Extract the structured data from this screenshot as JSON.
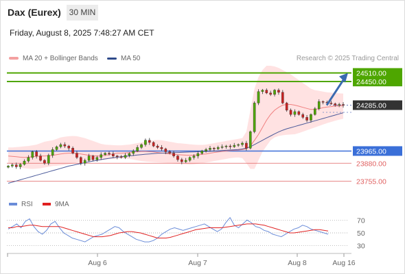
{
  "header": {
    "instrument": "Dax (Eurex)",
    "interval": "30 MIN",
    "timestamp": "Friday, August 8, 2025 7:48:27 AM CET"
  },
  "legend": {
    "ma20_label": "MA 20 + Bollinger Bands",
    "ma50_label": "MA 50",
    "credit": "Research © 2025 Trading Central"
  },
  "rsi_legend": {
    "rsi_label": "RSI",
    "ma_label": "9MA"
  },
  "colors": {
    "resistance": "#4ea600",
    "support": "#3a6fd8",
    "red_level": "#e06060",
    "current": "#333333",
    "candle_up": "#4ea600",
    "candle_down": "#cc2222",
    "bollinger_fill": "#ffd8d8",
    "ma20": "#f08080",
    "ma50": "#4a5a9a",
    "arrow": "#3a6ab0",
    "rsi": "#6a8cd8",
    "rsi_ma": "#e02020"
  },
  "chart_data": [
    {
      "type": "candlestick",
      "instrument": "Dax (Eurex)",
      "timeframe": "30 MIN",
      "ylim": [
        23690,
        24560
      ],
      "x_ticks": [
        "Aug 6",
        "Aug 7",
        "Aug 8",
        "Aug 16"
      ],
      "levels": [
        {
          "value": 24510.0,
          "label": "24510.00",
          "kind": "resistance"
        },
        {
          "value": 24450.0,
          "label": "24450.00",
          "kind": "resistance"
        },
        {
          "value": 24285.0,
          "label": "24285.00",
          "kind": "current"
        },
        {
          "value": 23965.0,
          "label": "23965.00",
          "kind": "support"
        },
        {
          "value": 23880.0,
          "label": "23880.00",
          "kind": "support_minor"
        },
        {
          "value": 23755.0,
          "label": "23755.00",
          "kind": "support_minor"
        }
      ],
      "closes": [
        23860,
        23868,
        23855,
        23872,
        23895,
        23920,
        23960,
        23930,
        23900,
        23880,
        23935,
        23975,
        23995,
        24010,
        24000,
        23985,
        23950,
        23920,
        23880,
        23900,
        23930,
        23905,
        23920,
        23940,
        23950,
        23945,
        23930,
        23925,
        23920,
        23935,
        23948,
        23965,
        23990,
        24010,
        24040,
        24025,
        24000,
        23990,
        23980,
        23960,
        23950,
        23930,
        23905,
        23890,
        23900,
        23920,
        23930,
        23948,
        23965,
        23975,
        23985,
        23980,
        23990,
        23995,
        24000,
        23995,
        24005,
        24010,
        24020,
        23985,
        24100,
        24300,
        24380,
        24390,
        24370,
        24360,
        24390,
        24375,
        24300,
        24250,
        24220,
        24240,
        24220,
        24200,
        24180,
        24220,
        24260,
        24310,
        24305,
        24300,
        24295,
        24285,
        24290,
        24285
      ],
      "ma20": [
        23930,
        23928,
        23925,
        23922,
        23920,
        23922,
        23925,
        23928,
        23930,
        23930,
        23932,
        23935,
        23940,
        23945,
        23948,
        23950,
        23950,
        23948,
        23945,
        23940,
        23935,
        23932,
        23930,
        23930,
        23935,
        23940,
        23945,
        23950,
        23950,
        23952,
        23955,
        23958,
        23960,
        23962,
        23962,
        23960,
        23958,
        23955,
        23952,
        23948,
        23945,
        23942,
        23940,
        23938,
        23936,
        23935,
        23936,
        23938,
        23942,
        23945,
        23950,
        23955,
        23958,
        23962,
        23965,
        23968,
        23970,
        23972,
        23975,
        23980,
        24000,
        24040,
        24080,
        24130,
        24180,
        24220,
        24250,
        24270,
        24285,
        24290,
        24290,
        24285,
        24278,
        24270,
        24262,
        24255,
        24255,
        24260,
        24268,
        24272,
        24275,
        24278,
        24280,
        24282
      ],
      "ma50": [
        23740,
        23748,
        23756,
        23764,
        23772,
        23780,
        23788,
        23796,
        23804,
        23812,
        23820,
        23828,
        23836,
        23844,
        23852,
        23860,
        23866,
        23872,
        23878,
        23884,
        23890,
        23895,
        23900,
        23905,
        23910,
        23914,
        23918,
        23922,
        23925,
        23928,
        23931,
        23934,
        23937,
        23940,
        23943,
        23945,
        23947,
        23949,
        23950,
        23952,
        23953,
        23954,
        23955,
        23956,
        23957,
        23958,
        23959,
        23960,
        23961,
        23962,
        23963,
        23965,
        23966,
        23968,
        23970,
        23972,
        23974,
        23976,
        23979,
        23985,
        23995,
        24010,
        24025,
        24040,
        24055,
        24070,
        24085,
        24098,
        24110,
        24120,
        24128,
        24136,
        24144,
        24152,
        24160,
        24168,
        24176,
        24184,
        24192,
        24200,
        24208,
        24216,
        24224,
        24232
      ],
      "bb_upper": [
        23990,
        23990,
        23992,
        23995,
        23998,
        24000,
        24005,
        24010,
        24020,
        24030,
        24035,
        24040,
        24050,
        24060,
        24065,
        24068,
        24070,
        24068,
        24062,
        24055,
        24045,
        24035,
        24025,
        24015,
        24010,
        24008,
        24006,
        24005,
        24005,
        24008,
        24010,
        24015,
        24020,
        24025,
        24030,
        24035,
        24040,
        24042,
        24040,
        24035,
        24030,
        24025,
        24020,
        24018,
        24015,
        24012,
        24010,
        24008,
        24008,
        24010,
        24015,
        24020,
        24025,
        24030,
        24035,
        24040,
        24045,
        24050,
        24055,
        24100,
        24250,
        24400,
        24480,
        24530,
        24560,
        24560,
        24555,
        24545,
        24530,
        24515,
        24500,
        24480,
        24460,
        24440,
        24420,
        24400,
        24390,
        24385,
        24380,
        24375,
        24372,
        24370,
        24368,
        24366
      ],
      "bb_lower": [
        23880,
        23870,
        23860,
        23850,
        23845,
        23842,
        23840,
        23842,
        23845,
        23850,
        23855,
        23860,
        23862,
        23865,
        23868,
        23872,
        23878,
        23885,
        23890,
        23892,
        23895,
        23898,
        23900,
        23902,
        23905,
        23908,
        23910,
        23912,
        23914,
        23912,
        23910,
        23905,
        23900,
        23895,
        23892,
        23890,
        23888,
        23886,
        23884,
        23882,
        23880,
        23878,
        23876,
        23874,
        23872,
        23870,
        23872,
        23876,
        23880,
        23885,
        23890,
        23895,
        23900,
        23905,
        23910,
        23915,
        23918,
        23920,
        23915,
        23880,
        23840,
        23840,
        23900,
        23960,
        24000,
        24040,
        24060,
        24070,
        24075,
        24078,
        24080,
        24082,
        24090,
        24100,
        24110,
        24120,
        24130,
        24140,
        24150,
        24160,
        24168,
        24176,
        24184,
        24190
      ],
      "forecast": {
        "from": 24285,
        "to": 24510
      }
    },
    {
      "type": "line",
      "title": "RSI",
      "series": [
        {
          "name": "RSI",
          "values": [
            56,
            60,
            64,
            58,
            68,
            72,
            60,
            52,
            48,
            54,
            64,
            68,
            58,
            50,
            46,
            42,
            40,
            38,
            36,
            40,
            44,
            46,
            48,
            52,
            56,
            60,
            58,
            52,
            48,
            44,
            40,
            38,
            36,
            36,
            38,
            42,
            48,
            52,
            56,
            58,
            56,
            54,
            56,
            58,
            60,
            62,
            64,
            60,
            56,
            52,
            56,
            66,
            74,
            62,
            58,
            64,
            70,
            66,
            60,
            58,
            54,
            52,
            48,
            46,
            44,
            48,
            52,
            56,
            58,
            62,
            60,
            56,
            54,
            52,
            50,
            48
          ]
        },
        {
          "name": "9MA",
          "values": [
            58,
            58,
            60,
            60,
            61,
            62,
            62,
            61,
            60,
            60,
            60,
            60,
            60,
            58,
            56,
            54,
            52,
            50,
            48,
            46,
            44,
            44,
            44,
            45,
            46,
            48,
            50,
            51,
            52,
            52,
            51,
            50,
            48,
            46,
            44,
            42,
            42,
            42,
            43,
            45,
            47,
            49,
            51,
            53,
            55,
            56,
            57,
            58,
            58,
            58,
            58,
            59,
            60,
            61,
            62,
            63,
            64,
            64,
            64,
            63,
            62,
            60,
            58,
            56,
            54,
            52,
            50,
            50,
            51,
            52,
            53,
            54,
            55,
            55,
            54,
            53
          ]
        }
      ],
      "ylim": [
        20,
        80
      ],
      "y_ticks": [
        70,
        50,
        30
      ]
    }
  ]
}
